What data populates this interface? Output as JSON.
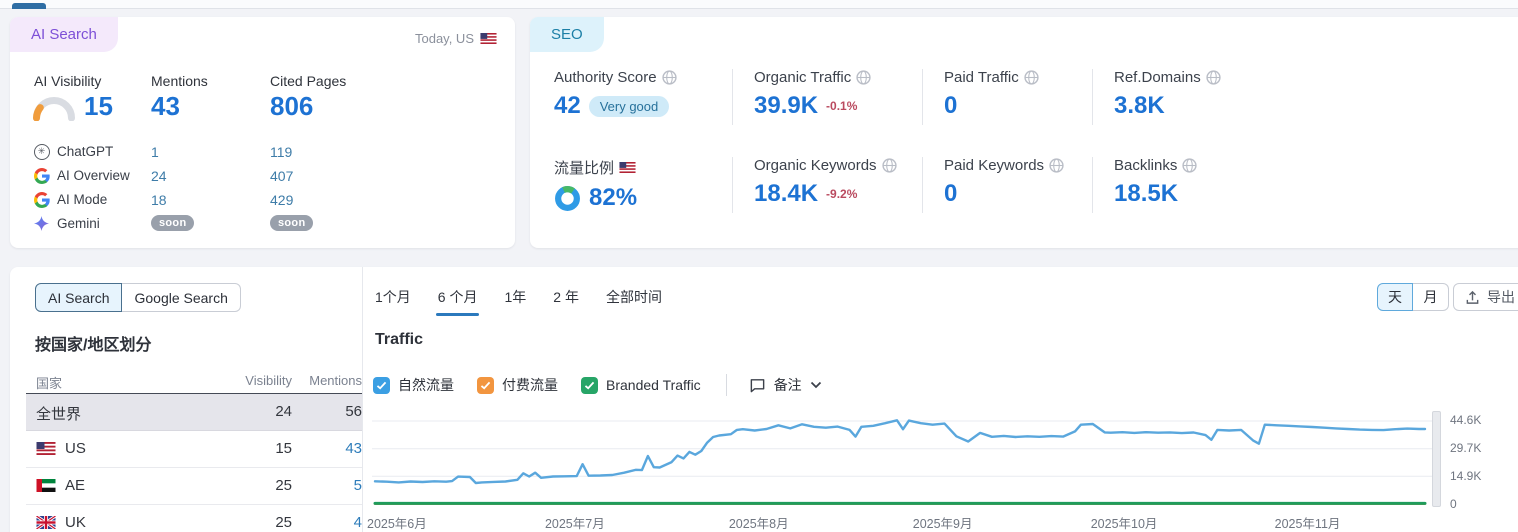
{
  "ai_search_card": {
    "badge": "AI Search",
    "date_scope": "Today, US",
    "columns": [
      "AI Visibility",
      "Mentions",
      "Cited Pages"
    ],
    "visibility_value": "15",
    "mentions_value": "43",
    "cited_pages_value": "806",
    "engines": [
      {
        "name": "ChatGPT",
        "mentions": "1",
        "cited": "119"
      },
      {
        "name": "AI Overview",
        "mentions": "24",
        "cited": "407"
      },
      {
        "name": "AI Mode",
        "mentions": "18",
        "cited": "429"
      },
      {
        "name": "Gemini",
        "mentions": "soon",
        "cited": "soon"
      }
    ]
  },
  "seo_card": {
    "badge": "SEO",
    "metrics": [
      {
        "label": "Authority Score",
        "value": "42",
        "rating": "Very good"
      },
      {
        "label": "Organic Traffic",
        "value": "39.9K",
        "change": "-0.1%"
      },
      {
        "label": "Paid Traffic",
        "value": "0"
      },
      {
        "label": "Ref.Domains",
        "value": "3.8K"
      },
      {
        "label": "流量比例",
        "value": "82%"
      },
      {
        "label": "Organic Keywords",
        "value": "18.4K",
        "change": "-9.2%"
      },
      {
        "label": "Paid Keywords",
        "value": "0"
      },
      {
        "label": "Backlinks",
        "value": "18.5K"
      }
    ]
  },
  "bottom_card": {
    "source_tabs": [
      "AI Search",
      "Google Search"
    ],
    "country_section_title": "按国家/地区划分",
    "table": {
      "headers": [
        "国家",
        "Visibility",
        "Mentions"
      ],
      "rows": [
        {
          "country": "全世界",
          "visibility": "24",
          "mentions": "56"
        },
        {
          "country": "US",
          "visibility": "15",
          "mentions": "43"
        },
        {
          "country": "AE",
          "visibility": "25",
          "mentions": "5"
        },
        {
          "country": "UK",
          "visibility": "25",
          "mentions": "4"
        }
      ]
    },
    "period_tabs": [
      "1个月",
      "6 个月",
      "1年",
      "2 年",
      "全部时间"
    ],
    "active_period": "6 个月",
    "granularity_toggle": [
      "天",
      "月"
    ],
    "export_label": "导出",
    "chart_title": "Traffic",
    "legend": [
      {
        "label": "自然流量",
        "color": "#3b9fe3"
      },
      {
        "label": "付费流量",
        "color": "#f2953f"
      },
      {
        "label": "Branded Traffic",
        "color": "#27a567"
      }
    ],
    "notes_label": "备注"
  },
  "chart_data": {
    "type": "line",
    "title": "Traffic",
    "x_labels": [
      "2025年6月",
      "2025年7月",
      "2025年8月",
      "2025年9月",
      "2025年10月",
      "2025年11月"
    ],
    "x_label_days": [
      0,
      30,
      61,
      92,
      122,
      153
    ],
    "x_max": 177,
    "y_max": 44.6,
    "y_unit": "K visits",
    "y_ticks": [
      "44.6K",
      "29.7K",
      "14.9K",
      "0"
    ],
    "grid_values": [
      44.6,
      29.7,
      14.9
    ],
    "legend_position": "top",
    "series": [
      {
        "name": "自然流量",
        "color": "#5aa7dd",
        "width": 2.4,
        "x": [
          0,
          2,
          4,
          6,
          8,
          10,
          12,
          13,
          14,
          16,
          17,
          18,
          20,
          22,
          24,
          25,
          26,
          27,
          28,
          30,
          32,
          34,
          35,
          36,
          38,
          40,
          42,
          44,
          45,
          46,
          47,
          48,
          50,
          51,
          52,
          53,
          54,
          55,
          56,
          57,
          58,
          60,
          61,
          62,
          64,
          66,
          68,
          70,
          72,
          74,
          76,
          78,
          80,
          81,
          82,
          84,
          86,
          88,
          89,
          90,
          92,
          94,
          96,
          98,
          100,
          102,
          104,
          106,
          108,
          110,
          112,
          114,
          116,
          118,
          119,
          121,
          123,
          124,
          126,
          128,
          130,
          132,
          134,
          136,
          138,
          140,
          141,
          142,
          144,
          146,
          148,
          149,
          150,
          152,
          154,
          156,
          158,
          160,
          162,
          164,
          166,
          168,
          170,
          172,
          174,
          176,
          177
        ],
        "values": [
          12.2,
          12.0,
          11.6,
          12.1,
          11.8,
          12.2,
          12.0,
          12.3,
          14.7,
          14.5,
          11.3,
          11.6,
          11.9,
          12.1,
          13.0,
          16.5,
          14.8,
          16.8,
          14.1,
          14.8,
          14.9,
          15.0,
          21.4,
          15.2,
          15.3,
          15.6,
          16.8,
          18.4,
          18.2,
          25.8,
          19.8,
          19.6,
          22.5,
          26.0,
          24.5,
          28.0,
          26.5,
          28.5,
          33.0,
          36.0,
          36.8,
          37.5,
          39.8,
          40.2,
          39.5,
          40.3,
          42.3,
          40.6,
          42.8,
          41.5,
          41.0,
          41.6,
          39.8,
          36.2,
          41.5,
          42.0,
          43.4,
          45.0,
          40.2,
          44.8,
          43.4,
          42.6,
          43.2,
          36.4,
          33.6,
          38.2,
          36.1,
          36.6,
          36.0,
          36.4,
          36.1,
          36.5,
          36.2,
          39.0,
          42.6,
          43.0,
          38.5,
          38.3,
          38.6,
          38.2,
          38.6,
          38.3,
          38.5,
          38.1,
          38.4,
          37.0,
          34.5,
          39.8,
          39.5,
          39.8,
          34.2,
          32.4,
          42.6,
          42.3,
          42.0,
          41.7,
          41.4,
          41.0,
          40.6,
          40.3,
          40.0,
          39.8,
          39.7,
          40.2,
          40.5,
          40.3,
          40.3
        ]
      },
      {
        "name": "付费流量",
        "color": "#f2953f",
        "width": 2,
        "x": [
          0,
          177
        ],
        "values": [
          0,
          0
        ]
      },
      {
        "name": "Branded Traffic",
        "color": "#1f9c5c",
        "width": 3,
        "x": [
          0,
          177
        ],
        "values": [
          0.3,
          0.3
        ]
      }
    ]
  }
}
